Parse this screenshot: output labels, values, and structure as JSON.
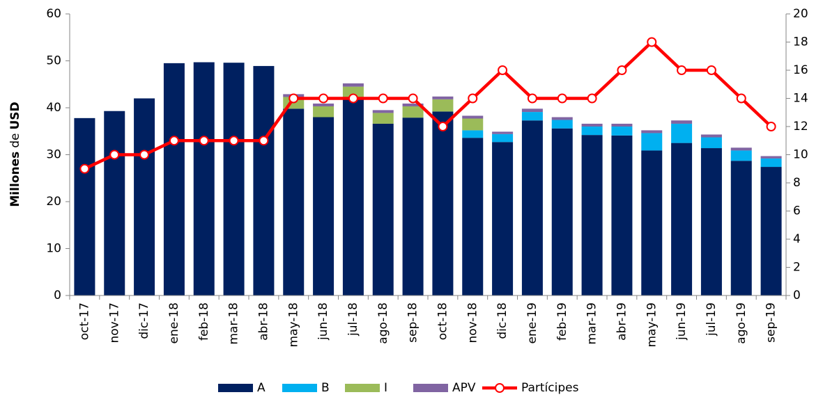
{
  "chart_data": {
    "type": "bar-line",
    "y_label": [
      "Millones",
      "de",
      "USD"
    ],
    "categories": [
      "oct-17",
      "nov-17",
      "dic-17",
      "ene-18",
      "feb-18",
      "mar-18",
      "abr-18",
      "may-18",
      "jun-18",
      "jul-18",
      "ago-18",
      "sep-18",
      "oct-18",
      "nov-18",
      "dic-18",
      "ene-19",
      "feb-19",
      "mar-19",
      "abr-19",
      "may-19",
      "jun-19",
      "jul-19",
      "ago-19",
      "sep-19"
    ],
    "series": [
      {
        "name": "A",
        "type": "bar",
        "color": "#002060",
        "values": [
          37.8,
          39.3,
          42.0,
          49.5,
          49.7,
          49.6,
          48.9,
          39.8,
          38.0,
          42.0,
          36.6,
          37.9,
          39.2,
          33.6,
          32.7,
          37.3,
          35.6,
          34.2,
          34.1,
          30.9,
          32.5,
          31.4,
          28.7,
          27.4
        ]
      },
      {
        "name": "B",
        "type": "bar",
        "color": "#00b0f0",
        "values": [
          0,
          0,
          0,
          0,
          0,
          0,
          0,
          0,
          0,
          0,
          0,
          0,
          0,
          1.6,
          1.7,
          1.8,
          1.8,
          1.8,
          1.9,
          3.7,
          4.1,
          2.3,
          2.2,
          1.8
        ]
      },
      {
        "name": "I",
        "type": "bar",
        "color": "#9bbb59",
        "values": [
          0,
          0,
          0,
          0,
          0,
          0,
          0,
          2.5,
          2.3,
          2.5,
          2.3,
          2.4,
          2.6,
          2.5,
          0,
          0,
          0,
          0,
          0,
          0,
          0,
          0,
          0,
          0
        ]
      },
      {
        "name": "APV",
        "type": "bar",
        "color": "#8064a2",
        "values": [
          0,
          0,
          0,
          0,
          0,
          0,
          0,
          0.6,
          0.6,
          0.7,
          0.6,
          0.6,
          0.6,
          0.6,
          0.5,
          0.7,
          0.6,
          0.6,
          0.6,
          0.6,
          0.7,
          0.6,
          0.6,
          0.5
        ]
      },
      {
        "name": "Partícipes",
        "type": "line",
        "axis": "y2",
        "color": "#ff0000",
        "values": [
          9,
          10,
          10,
          11,
          11,
          11,
          11,
          14,
          14,
          14,
          14,
          14,
          12,
          14,
          16,
          14,
          14,
          14,
          16,
          18,
          16,
          16,
          14,
          12
        ]
      }
    ],
    "ylim": [
      0,
      60
    ],
    "yticks": [
      0,
      10,
      20,
      30,
      40,
      50,
      60
    ],
    "y2lim": [
      0,
      20
    ],
    "y2ticks": [
      0,
      2,
      4,
      6,
      8,
      10,
      12,
      14,
      16,
      18,
      20
    ],
    "legend": "bottom"
  }
}
